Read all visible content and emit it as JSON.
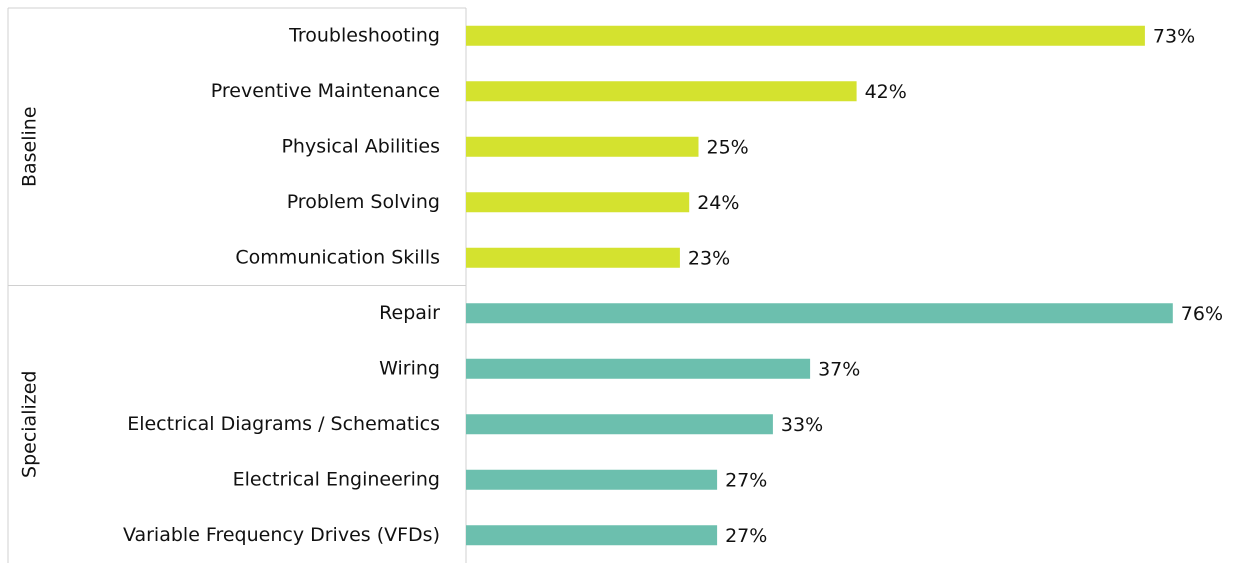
{
  "chart_data": {
    "type": "bar",
    "orientation": "horizontal",
    "groups": [
      {
        "name": "Baseline",
        "color": "#d4e22f",
        "categories": [
          "Troubleshooting",
          "Preventive Maintenance",
          "Physical Abilities",
          "Problem Solving",
          "Communication Skills"
        ],
        "values": [
          73,
          42,
          25,
          24,
          23
        ],
        "value_labels": [
          "73%",
          "42%",
          "25%",
          "24%",
          "23%"
        ]
      },
      {
        "name": "Specialized",
        "color": "#6cbfae",
        "categories": [
          "Repair",
          "Wiring",
          "Electrical Diagrams / Schematics",
          "Electrical Engineering",
          "Variable Frequency Drives (VFDs)"
        ],
        "values": [
          76,
          37,
          33,
          27,
          27
        ],
        "value_labels": [
          "76%",
          "37%",
          "33%",
          "27%",
          "27%"
        ]
      }
    ]
  }
}
